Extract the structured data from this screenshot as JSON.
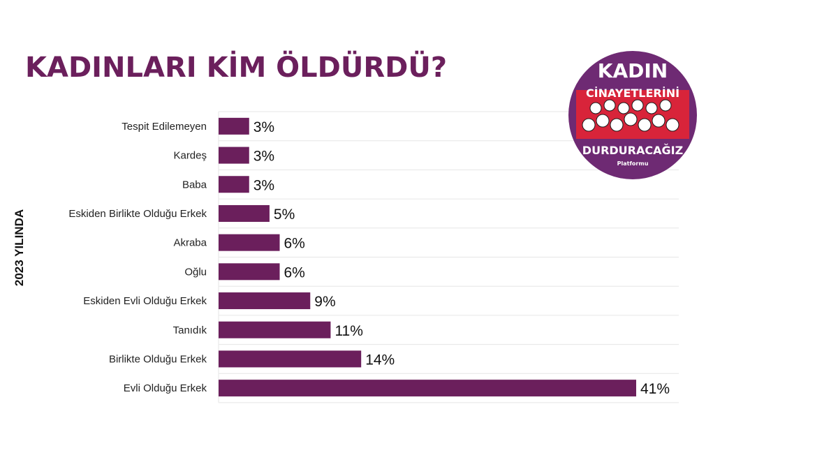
{
  "title": "KADINLARI KİM ÖLDÜRDÜ?",
  "colors": {
    "bar": "#6b1f5c",
    "title": "#6b1f5c",
    "badge_purple": "#6e2a73",
    "badge_red": "#d8243a",
    "grid": "#e6e6e6"
  },
  "badge": {
    "line1": "KADIN",
    "line2": "CİNAYETLERİNİ",
    "line3": "DURDURACAĞIZ",
    "line4": "Platformu"
  },
  "chart_data": {
    "type": "bar",
    "orientation": "horizontal",
    "title": "KADINLARI KİM ÖLDÜRDÜ?",
    "ylabel": "2023 YILINDA",
    "xlabel": "",
    "categories": [
      "Tespit Edilemeyen",
      "Kardeş",
      "Baba",
      "Eskiden Birlikte Olduğu Erkek",
      "Akraba",
      "Oğlu",
      "Eskiden Evli Olduğu Erkek",
      "Tanıdık",
      "Birlikte Olduğu Erkek",
      "Evli Olduğu Erkek"
    ],
    "values": [
      3,
      3,
      3,
      5,
      6,
      6,
      9,
      11,
      14,
      41
    ],
    "value_labels": [
      "3%",
      "3%",
      "3%",
      "5%",
      "6%",
      "6%",
      "9%",
      "11%",
      "14%",
      "41%"
    ],
    "xlim": [
      0,
      41
    ],
    "grid": true,
    "legend": "none"
  }
}
